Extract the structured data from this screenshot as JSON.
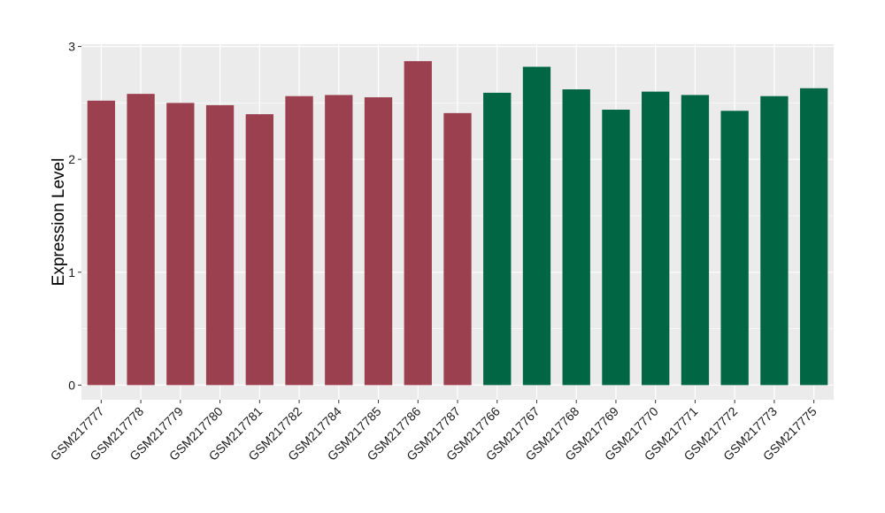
{
  "chart_data": {
    "type": "bar",
    "xlabel": "",
    "ylabel": "Expression Level",
    "ylim": [
      -0.13,
      3.02
    ],
    "yticks": [
      0,
      1,
      2,
      3
    ],
    "grid": true,
    "legend": "none",
    "categories": [
      "GSM217777",
      "GSM217778",
      "GSM217779",
      "GSM217780",
      "GSM217781",
      "GSM217782",
      "GSM217784",
      "GSM217785",
      "GSM217786",
      "GSM217787",
      "GSM217766",
      "GSM217767",
      "GSM217768",
      "GSM217769",
      "GSM217770",
      "GSM217771",
      "GSM217772",
      "GSM217773",
      "GSM217775"
    ],
    "values": [
      2.52,
      2.58,
      2.5,
      2.48,
      2.4,
      2.56,
      2.57,
      2.55,
      2.87,
      2.41,
      2.59,
      2.82,
      2.62,
      2.44,
      2.6,
      2.57,
      2.43,
      2.56,
      2.63
    ],
    "groups": [
      "red",
      "red",
      "red",
      "red",
      "red",
      "red",
      "red",
      "red",
      "red",
      "red",
      "green",
      "green",
      "green",
      "green",
      "green",
      "green",
      "green",
      "green",
      "green"
    ],
    "colors": {
      "red": "#9b404f",
      "green": "#006644",
      "panel": "#ebebeb",
      "grid": "#ffffff"
    }
  }
}
